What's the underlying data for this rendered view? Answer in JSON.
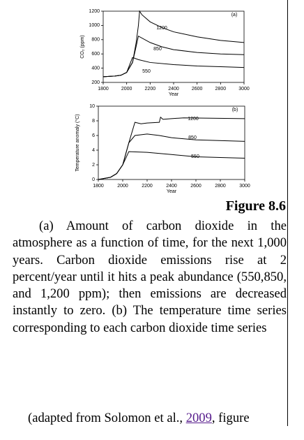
{
  "chart_data": [
    {
      "type": "line",
      "ylabel": "CO₂ (ppm)",
      "xlabel": "Year",
      "panel": "(a)",
      "xlim": [
        1800,
        3000
      ],
      "xticks": [
        1800,
        2000,
        2200,
        2400,
        2600,
        2800,
        3000
      ],
      "ylim": [
        200,
        1200
      ],
      "yticks": [
        200,
        400,
        600,
        800,
        1000,
        1200
      ],
      "color": "#000000",
      "series": [
        {
          "name": "1200",
          "x": [
            1800,
            1900,
            1950,
            2000,
            2050,
            2080,
            2100,
            2110,
            2130,
            2200,
            2300,
            2400,
            2600,
            2800,
            3000
          ],
          "values": [
            280,
            290,
            300,
            340,
            480,
            750,
            1000,
            1200,
            1150,
            1050,
            970,
            910,
            840,
            790,
            760
          ]
        },
        {
          "name": "850",
          "x": [
            1800,
            1900,
            1950,
            2000,
            2050,
            2080,
            2100,
            2200,
            2300,
            2400,
            2600,
            2800,
            3000
          ],
          "values": [
            280,
            290,
            300,
            340,
            480,
            700,
            850,
            760,
            700,
            660,
            620,
            600,
            590
          ]
        },
        {
          "name": "550",
          "x": [
            1800,
            1900,
            1950,
            2000,
            2050,
            2100,
            2200,
            2400,
            2600,
            2800,
            3000
          ],
          "values": [
            280,
            290,
            300,
            340,
            550,
            520,
            480,
            450,
            430,
            420,
            410
          ]
        }
      ]
    },
    {
      "type": "line",
      "ylabel": "Temperature anomaly (°C)",
      "xlabel": "Year",
      "panel": "(b)",
      "xlim": [
        1800,
        3000
      ],
      "xticks": [
        1800,
        2000,
        2200,
        2400,
        2600,
        2800,
        3000
      ],
      "ylim": [
        0,
        10
      ],
      "yticks": [
        0,
        2,
        4,
        6,
        8,
        10
      ],
      "color": "#000000",
      "series": [
        {
          "name": "1200",
          "x": [
            1800,
            1900,
            1950,
            2000,
            2050,
            2100,
            2150,
            2200,
            2300,
            2310,
            2330,
            2400,
            2500,
            3000
          ],
          "values": [
            0,
            0.3,
            0.8,
            2,
            5,
            7.8,
            7.6,
            7.7,
            7.8,
            8.5,
            8.2,
            8.3,
            8.4,
            8.3
          ]
        },
        {
          "name": "850",
          "x": [
            1800,
            1900,
            1950,
            2000,
            2050,
            2100,
            2200,
            2300,
            2400,
            2600,
            3000
          ],
          "values": [
            0,
            0.3,
            0.8,
            2,
            5,
            6,
            6.2,
            6,
            5.7,
            5.4,
            5.2
          ]
        },
        {
          "name": "550",
          "x": [
            1800,
            1900,
            1950,
            2000,
            2050,
            2200,
            2400,
            2600,
            3000
          ],
          "values": [
            0,
            0.3,
            0.8,
            2,
            3.8,
            3.7,
            3.4,
            3.1,
            2.9
          ]
        }
      ]
    }
  ],
  "document": {
    "figure_label": "Figure 8.6",
    "caption": "(a) Amount of carbon dioxide in the atmosphere as a function of time, for the next 1,000 years. Carbon dioxide emissions rise at 2 percent/year until it hits a peak abundance (550,850, and 1,200 ppm); then emissions are decreased instantly to zero. (b) The temperature time series corresponding to each carbon dioxide time series",
    "source_prefix": "(adapted from Solomon et al., ",
    "source_link": "2009",
    "source_suffix": ", figure"
  }
}
